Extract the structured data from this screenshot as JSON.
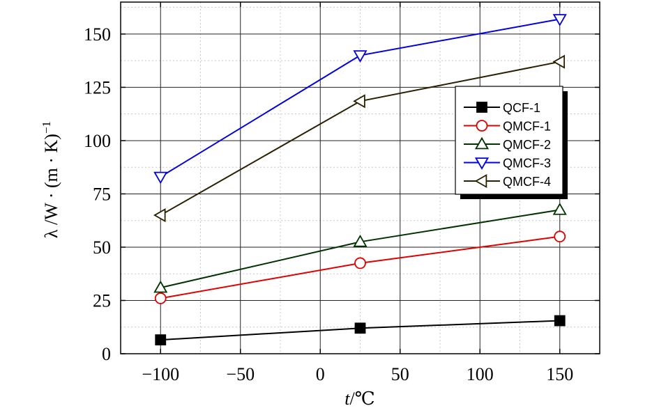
{
  "chart_data": {
    "type": "line",
    "xlabel_var": "t",
    "xlabel_unit": "/℃",
    "ylabel": "λ /W · (m · K)",
    "ylabel_exp": "−1",
    "xlim": [
      -125,
      175
    ],
    "ylim": [
      0,
      165
    ],
    "grid": true,
    "legend_position": "top-right",
    "x_ticks": [
      -100,
      -50,
      0,
      50,
      100,
      150
    ],
    "x_tick_labels": [
      "−100",
      "−50",
      "0",
      "50",
      "100",
      "150"
    ],
    "y_ticks": [
      0,
      25,
      50,
      75,
      100,
      125,
      150
    ],
    "y_tick_labels": [
      "0",
      "25",
      "50",
      "75",
      "100",
      "125",
      "150"
    ],
    "x": [
      -100,
      25,
      150
    ],
    "series": [
      {
        "name": "QCF-1",
        "values": [
          6.5,
          12,
          15.5
        ],
        "color": "#000000",
        "marker": "square-filled"
      },
      {
        "name": "QMCF-1",
        "values": [
          26,
          42.5,
          55
        ],
        "color": "#e00000",
        "marker": "circle"
      },
      {
        "name": "QMCF-2",
        "values": [
          31,
          52.5,
          67.5
        ],
        "color": "#003300",
        "marker": "triangle-up"
      },
      {
        "name": "QMCF-3",
        "values": [
          83,
          140,
          157
        ],
        "color": "#0000e0",
        "marker": "triangle-down"
      },
      {
        "name": "QMCF-4",
        "values": [
          65,
          118.5,
          137
        ],
        "color": "#2a2000",
        "marker": "triangle-left"
      }
    ]
  }
}
